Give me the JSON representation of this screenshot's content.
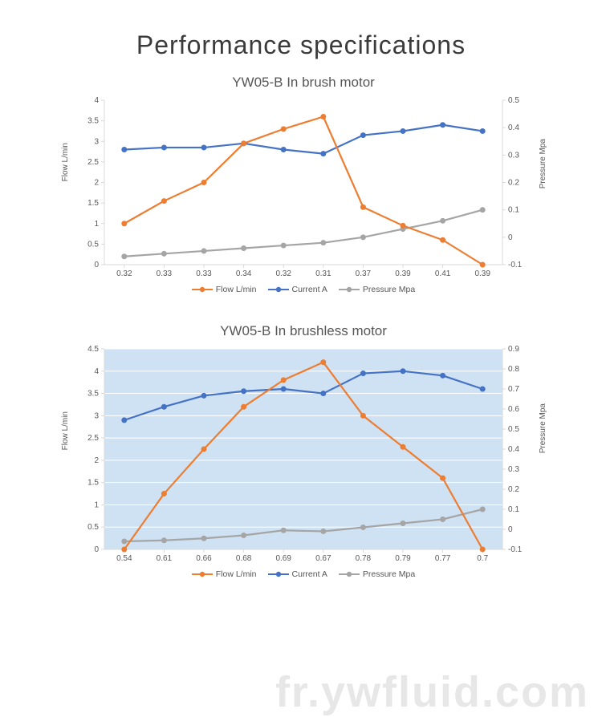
{
  "page": {
    "title": "Performance specifications",
    "watermark": "fr.ywfluid.com"
  },
  "colors": {
    "flow": "#ed7d31",
    "current": "#4472c4",
    "pressure": "#a5a5a5",
    "axis": "#d9d9d9",
    "tick_text": "#595959",
    "plot_bg_2": "#cfe2f3",
    "grid2": "#ffffff"
  },
  "legend": {
    "flow": "Flow L/min",
    "current": "Current A",
    "pressure": "Pressure Mpa"
  },
  "chart1": {
    "title": "YW05-B In brush motor",
    "left_label": "Flow L/min",
    "right_label": "Pressure Mpa",
    "left_min": 0,
    "left_max": 4,
    "left_step": 0.5,
    "right_min": -0.1,
    "right_max": 0.5,
    "right_step": 0.1,
    "categories": [
      "0.32",
      "0.33",
      "0.33",
      "0.34",
      "0.32",
      "0.31",
      "0.37",
      "0.39",
      "0.41",
      "0.39"
    ],
    "left_ticks": [
      "0",
      "0.5",
      "1",
      "1.5",
      "2",
      "2.5",
      "3",
      "3.5",
      "4"
    ],
    "right_ticks": [
      "-0.1",
      "0",
      "0.1",
      "0.2",
      "0.3",
      "0.4",
      "0.5"
    ],
    "flow": [
      1.0,
      1.55,
      2.0,
      2.95,
      3.3,
      3.6,
      1.4,
      0.95,
      0.6,
      0.0
    ],
    "current": [
      2.8,
      2.85,
      2.85,
      2.95,
      2.8,
      2.7,
      3.15,
      3.25,
      3.4,
      3.25
    ],
    "pressure": [
      -0.07,
      -0.06,
      -0.05,
      -0.04,
      -0.03,
      -0.02,
      0.0,
      0.03,
      0.06,
      0.1
    ],
    "marker_r": 3.5,
    "line_w": 2.2
  },
  "chart2": {
    "title": "YW05-B In brushless motor",
    "left_label": "Flow L/min",
    "right_label": "Pressure  Mpa",
    "left_min": 0,
    "left_max": 4.5,
    "left_step": 0.5,
    "right_min": -0.1,
    "right_max": 0.9,
    "right_step": 0.1,
    "categories": [
      "0.54",
      "0.61",
      "0.66",
      "0.68",
      "0.69",
      "0.67",
      "0.78",
      "0.79",
      "0.77",
      "0.7"
    ],
    "left_ticks": [
      "0",
      "0.5",
      "1",
      "1.5",
      "2",
      "2.5",
      "3",
      "3.5",
      "4",
      "4.5"
    ],
    "right_ticks": [
      "-0.1",
      "0",
      "0.1",
      "0.2",
      "0.3",
      "0.4",
      "0.5",
      "0.6",
      "0.7",
      "0.8",
      "0.9"
    ],
    "flow": [
      0.0,
      1.25,
      2.25,
      3.2,
      3.8,
      4.2,
      3.0,
      2.3,
      1.6,
      0.0
    ],
    "current": [
      2.9,
      3.2,
      3.45,
      3.55,
      3.6,
      3.5,
      3.95,
      4.0,
      3.9,
      3.6
    ],
    "pressure": [
      -0.06,
      -0.055,
      -0.045,
      -0.03,
      -0.005,
      -0.01,
      0.01,
      0.03,
      0.05,
      0.1
    ],
    "marker_r": 3.5,
    "line_w": 2.2
  }
}
